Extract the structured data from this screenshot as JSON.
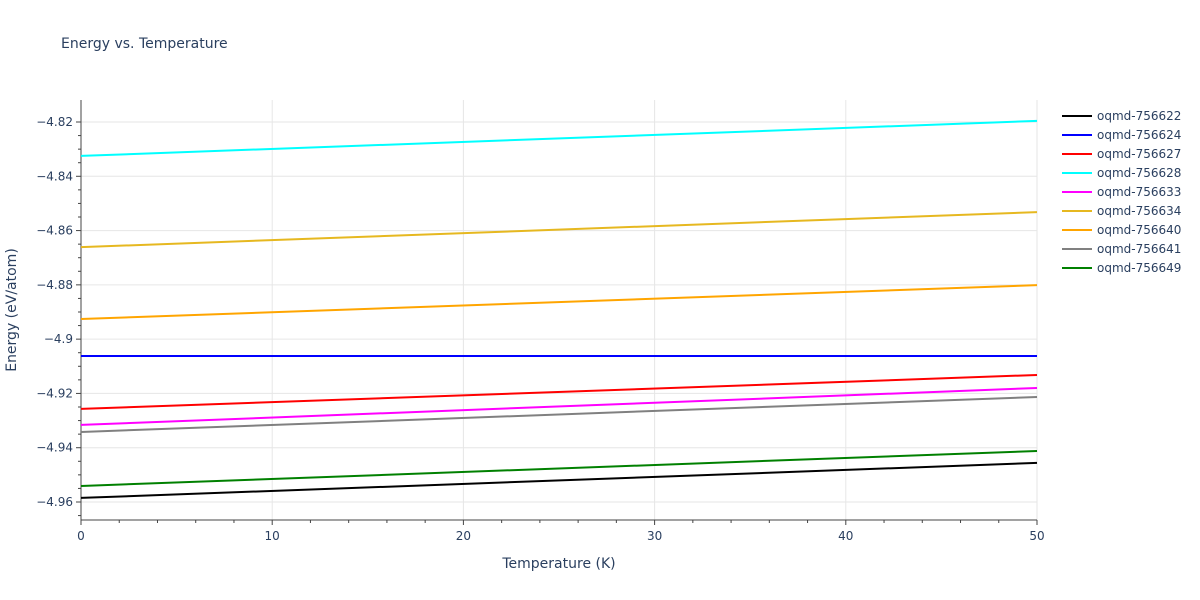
{
  "chart_data": {
    "type": "line",
    "title": "Energy vs. Temperature",
    "xlabel": "Temperature (K)",
    "ylabel": "Energy (eV/atom)",
    "xlim": [
      0,
      50
    ],
    "ylim": [
      -4.9655,
      -4.8125
    ],
    "x_ticks": [
      0,
      10,
      20,
      30,
      40,
      50
    ],
    "y_ticks": [
      -4.82,
      -4.84,
      -4.86,
      -4.88,
      -4.9,
      -4.92,
      -4.94,
      -4.96
    ],
    "y_tick_labels": [
      "−4.82",
      "−4.84",
      "−4.86",
      "−4.88",
      "−4.9",
      "−4.92",
      "−4.94",
      "−4.96"
    ],
    "grid": true,
    "legend_position": "right",
    "x": [
      0,
      50
    ],
    "series": [
      {
        "name": "oqmd-756622",
        "color": "#000000",
        "values": [
          -4.9585,
          -4.9456
        ]
      },
      {
        "name": "oqmd-756624",
        "color": "#0000ff",
        "values": [
          -4.9062,
          -4.9062
        ]
      },
      {
        "name": "oqmd-756627",
        "color": "#ff0000",
        "values": [
          -4.9257,
          -4.9132
        ]
      },
      {
        "name": "oqmd-756628",
        "color": "#00ffff",
        "values": [
          -4.8325,
          -4.8196
        ]
      },
      {
        "name": "oqmd-756633",
        "color": "#ff00ff",
        "values": [
          -4.9316,
          -4.918
        ]
      },
      {
        "name": "oqmd-756634",
        "color": "#e6b820",
        "values": [
          -4.8661,
          -4.8532
        ]
      },
      {
        "name": "oqmd-756640",
        "color": "#ffa500",
        "values": [
          -4.8926,
          -4.8801
        ]
      },
      {
        "name": "oqmd-756641",
        "color": "#808080",
        "values": [
          -4.9342,
          -4.9213
        ]
      },
      {
        "name": "oqmd-756649",
        "color": "#008000",
        "values": [
          -4.9541,
          -4.9412
        ]
      }
    ]
  }
}
